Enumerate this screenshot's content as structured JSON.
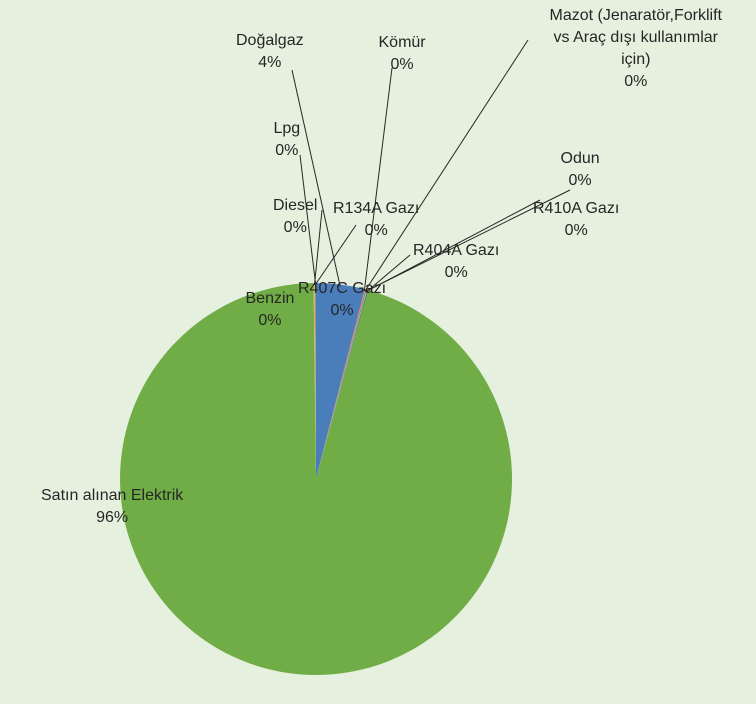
{
  "colors": {
    "background": "#e6f0de",
    "leader_line": "#262626",
    "label_text": "#262626"
  },
  "chart_data": {
    "type": "pie",
    "start_angle_deg": 0,
    "direction": "clockwise",
    "legend": "none",
    "slices": [
      {
        "label": "Doğalgaz",
        "value": 4,
        "display": "4%",
        "color": "#4a7ebb"
      },
      {
        "label": "Kömür",
        "value": 0.05,
        "display": "0%",
        "color": "#c0504d"
      },
      {
        "label": "Mazot (Jenaratör,Forklift vs Araç dışı kullanımlar için)",
        "display_lines": [
          "Mazot (Jenaratör,Forklift",
          "vs Araç dışı kullanımlar",
          "için)"
        ],
        "value": 0.05,
        "display": "0%",
        "color": "#f79646"
      },
      {
        "label": "Odun",
        "value": 0.05,
        "display": "0%",
        "color": "#8064a2"
      },
      {
        "label": "R410A Gazı",
        "value": 0.05,
        "display": "0%",
        "color": "#4bacc6"
      },
      {
        "label": "R404A Gazı",
        "value": 0.05,
        "display": "0%",
        "color": "#9bbb59"
      },
      {
        "label": "R407C Gazı",
        "value": 0.05,
        "display": "0%",
        "color": "#2c4d75"
      },
      {
        "label": "Satın alınan Elektrik",
        "value": 96,
        "display": "96%",
        "color": "#70ad47"
      },
      {
        "label": "Benzin",
        "value": 0.05,
        "display": "0%",
        "color": "#ffc000"
      },
      {
        "label": "Diesel",
        "value": 0.05,
        "display": "0%",
        "color": "#a5a5a5"
      },
      {
        "label": "R134A Gazı",
        "value": 0.05,
        "display": "0%",
        "color": "#ed7d31"
      },
      {
        "label": "Lpg",
        "value": 0.05,
        "display": "0%",
        "color": "#5b9bd5"
      }
    ]
  }
}
